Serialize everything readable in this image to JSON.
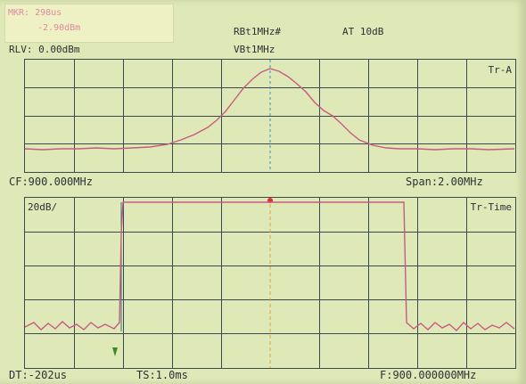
{
  "marker": {
    "frequency": "MKR: 298us",
    "level": "-2.90dBm"
  },
  "settings": {
    "rbw": "RBt1MHz#",
    "vbw": "VBt1MHz",
    "attenuation": "AT 10dB",
    "reference_level": "RLV: 0.00dBm"
  },
  "top_trace": {
    "label": "Tr-A"
  },
  "mid_bar": {
    "center_freq": "CF:900.000MHz",
    "span": "Span:2.00MHz"
  },
  "bottom_trace": {
    "scale": "20dB/",
    "label": "Tr-Time"
  },
  "bottom_bar": {
    "delay_time": "DT:-202us",
    "time_span": "TS:1.0ms",
    "frequency": "F:900.000000MHz"
  },
  "colors": {
    "screen_bg": "#dfe9b7",
    "grid": "#3a4a4f",
    "trace": "#c85a82",
    "marker_line": "#d9a43a",
    "cursor_line": "#3a8fc0",
    "text": "#2c3036"
  }
}
